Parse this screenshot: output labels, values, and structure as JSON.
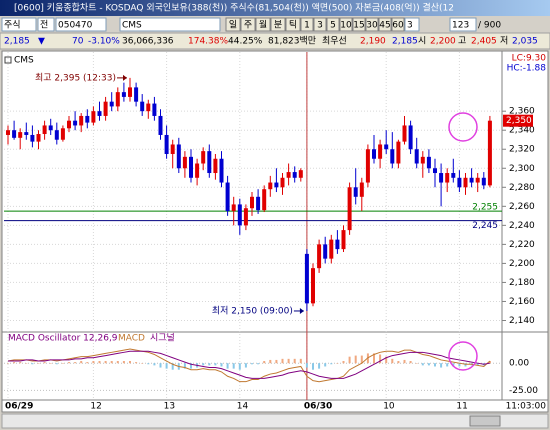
{
  "window": {
    "title": "[0600] 키움종합차트 - KOSDAQ 외국인보유(388(천)) 주식수(81,504(천)) 액면(500) 자본금(408(억)) 결산(12"
  },
  "toolbar": {
    "market": "주식",
    "prefix": "전",
    "code": "050470",
    "indicator": "CMS",
    "periods": [
      "일",
      "주",
      "월",
      "분",
      "틱",
      "1",
      "3",
      "5",
      "10",
      "15",
      "30",
      "45",
      "60"
    ],
    "count": "3",
    "visible": "123",
    "total": "/ 900"
  },
  "quote": {
    "price": "2,185",
    "change_sign": "▼",
    "change": "70",
    "change_pct": "-3.10%",
    "volume": "36,066,336",
    "vol_ratio": "174.38%",
    "rotation": "44.25%",
    "amount": "81,823백만",
    "best_label": "최우선",
    "ask": "2,190",
    "bid": "2,185",
    "open_label": "시",
    "open": "2,200",
    "high_label": "고",
    "high": "2,405",
    "low_label": "저",
    "low": "2,035"
  },
  "chart": {
    "legend": "CMS",
    "lc": "LC:9.30",
    "hc": "HC:-1.88",
    "up_color": "#e00000",
    "down_color": "#0000d0",
    "ylim": [
      2130,
      2418
    ],
    "yticks": [
      {
        "value": 2140,
        "label": "2,140"
      },
      {
        "value": 2160,
        "label": "2,160"
      },
      {
        "value": 2180,
        "label": "2,180"
      },
      {
        "value": 2200,
        "label": "2,200"
      },
      {
        "value": 2220,
        "label": "2,220"
      },
      {
        "value": 2240,
        "label": "2,240"
      },
      {
        "value": 2260,
        "label": "2,260"
      },
      {
        "value": 2280,
        "label": "2,280"
      },
      {
        "value": 2300,
        "label": "2,300"
      },
      {
        "value": 2320,
        "label": "2,320"
      },
      {
        "value": 2340,
        "label": "2,340"
      },
      {
        "value": 2360,
        "label": "2,360"
      }
    ],
    "hlines": [
      {
        "value": 2255,
        "label": "2,255",
        "color": "#008000"
      },
      {
        "value": 2245,
        "label": "2,245",
        "color": "#000080"
      }
    ],
    "last": {
      "value": 2350,
      "label": "2,350"
    },
    "high_note": "최고 2,395 (12:33)",
    "low_note": "최저 2,150 (09:00)",
    "time_label": "11:03:00",
    "categories": [
      "06/29",
      null,
      null,
      null,
      null,
      null,
      null,
      null,
      null,
      null,
      null,
      null,
      null,
      null,
      "12",
      null,
      null,
      null,
      null,
      null,
      null,
      null,
      null,
      null,
      null,
      null,
      "13",
      null,
      null,
      null,
      null,
      null,
      null,
      null,
      null,
      null,
      null,
      null,
      "14",
      null,
      null,
      null,
      null,
      null,
      null,
      null,
      null,
      null,
      null,
      "06/30",
      null,
      null,
      null,
      null,
      null,
      null,
      null,
      null,
      null,
      null,
      null,
      null,
      "10",
      null,
      null,
      null,
      null,
      null,
      null,
      null,
      null,
      null,
      null,
      null,
      "11",
      null,
      null,
      null,
      null,
      null
    ],
    "ohlc": [
      [
        2335,
        2345,
        2325,
        2340
      ],
      [
        2340,
        2350,
        2330,
        2332
      ],
      [
        2332,
        2342,
        2320,
        2338
      ],
      [
        2338,
        2348,
        2330,
        2335
      ],
      [
        2335,
        2345,
        2322,
        2328
      ],
      [
        2328,
        2340,
        2320,
        2336
      ],
      [
        2336,
        2350,
        2330,
        2345
      ],
      [
        2345,
        2352,
        2335,
        2340
      ],
      [
        2340,
        2348,
        2325,
        2330
      ],
      [
        2330,
        2345,
        2328,
        2342
      ],
      [
        2342,
        2355,
        2338,
        2350
      ],
      [
        2350,
        2360,
        2340,
        2345
      ],
      [
        2345,
        2358,
        2338,
        2355
      ],
      [
        2355,
        2362,
        2342,
        2348
      ],
      [
        2348,
        2365,
        2345,
        2360
      ],
      [
        2360,
        2370,
        2350,
        2355
      ],
      [
        2355,
        2375,
        2350,
        2370
      ],
      [
        2370,
        2380,
        2360,
        2365
      ],
      [
        2365,
        2385,
        2360,
        2380
      ],
      [
        2380,
        2390,
        2370,
        2375
      ],
      [
        2375,
        2395,
        2370,
        2385
      ],
      [
        2385,
        2390,
        2365,
        2370
      ],
      [
        2370,
        2378,
        2355,
        2360
      ],
      [
        2360,
        2372,
        2352,
        2368
      ],
      [
        2368,
        2375,
        2350,
        2355
      ],
      [
        2355,
        2362,
        2330,
        2335
      ],
      [
        2335,
        2345,
        2310,
        2315
      ],
      [
        2315,
        2330,
        2300,
        2325
      ],
      [
        2325,
        2332,
        2295,
        2300
      ],
      [
        2300,
        2318,
        2290,
        2312
      ],
      [
        2312,
        2320,
        2285,
        2290
      ],
      [
        2290,
        2310,
        2282,
        2305
      ],
      [
        2305,
        2322,
        2298,
        2318
      ],
      [
        2318,
        2325,
        2290,
        2295
      ],
      [
        2295,
        2315,
        2288,
        2310
      ],
      [
        2310,
        2318,
        2280,
        2285
      ],
      [
        2285,
        2292,
        2250,
        2255
      ],
      [
        2255,
        2270,
        2240,
        2262
      ],
      [
        2262,
        2268,
        2230,
        2240
      ],
      [
        2240,
        2262,
        2235,
        2258
      ],
      [
        2258,
        2275,
        2250,
        2270
      ],
      [
        2270,
        2278,
        2252,
        2256
      ],
      [
        2256,
        2282,
        2254,
        2278
      ],
      [
        2278,
        2292,
        2270,
        2285
      ],
      [
        2285,
        2300,
        2275,
        2280
      ],
      [
        2280,
        2295,
        2272,
        2290
      ],
      [
        2290,
        2305,
        2282,
        2296
      ],
      [
        2296,
        2302,
        2285,
        2290
      ],
      [
        2290,
        2300,
        2286,
        2298
      ],
      [
        2210,
        2215,
        2150,
        2158
      ],
      [
        2158,
        2200,
        2155,
        2195
      ],
      [
        2195,
        2225,
        2190,
        2220
      ],
      [
        2220,
        2228,
        2200,
        2205
      ],
      [
        2205,
        2230,
        2200,
        2225
      ],
      [
        2225,
        2235,
        2210,
        2215
      ],
      [
        2215,
        2240,
        2212,
        2235
      ],
      [
        2235,
        2285,
        2230,
        2280
      ],
      [
        2280,
        2300,
        2262,
        2270
      ],
      [
        2270,
        2290,
        2255,
        2285
      ],
      [
        2285,
        2325,
        2280,
        2320
      ],
      [
        2320,
        2335,
        2305,
        2310
      ],
      [
        2310,
        2330,
        2300,
        2325
      ],
      [
        2325,
        2340,
        2315,
        2320
      ],
      [
        2320,
        2338,
        2300,
        2305
      ],
      [
        2305,
        2330,
        2300,
        2328
      ],
      [
        2328,
        2355,
        2325,
        2345
      ],
      [
        2345,
        2350,
        2315,
        2320
      ],
      [
        2320,
        2332,
        2300,
        2305
      ],
      [
        2305,
        2318,
        2290,
        2312
      ],
      [
        2312,
        2320,
        2295,
        2300
      ],
      [
        2300,
        2310,
        2280,
        2295
      ],
      [
        2295,
        2305,
        2260,
        2285
      ],
      [
        2285,
        2300,
        2275,
        2295
      ],
      [
        2295,
        2310,
        2285,
        2290
      ],
      [
        2290,
        2298,
        2275,
        2280
      ],
      [
        2280,
        2295,
        2272,
        2290
      ],
      [
        2290,
        2300,
        2280,
        2285
      ],
      [
        2285,
        2295,
        2275,
        2290
      ],
      [
        2290,
        2296,
        2278,
        2282
      ],
      [
        2282,
        2355,
        2280,
        2350
      ]
    ]
  },
  "macd": {
    "ylim": [
      -32,
      25
    ],
    "yticks": [
      {
        "value": 0,
        "label": "0.00"
      },
      {
        "value": -25,
        "label": "-25.00"
      }
    ],
    "osc_name": "MACD Oscillator 12,26,9",
    "osc_up_color": "#f0a880",
    "osc_down_color": "#88c8e8",
    "oscillator": [
      0,
      1,
      1,
      0,
      -1,
      0,
      1,
      0,
      -1,
      0,
      1,
      1,
      2,
      1,
      2,
      2,
      2,
      2,
      2,
      2,
      2,
      1,
      0,
      -1,
      -2,
      -4,
      -5,
      -6,
      -6,
      -5,
      -5,
      -4,
      -2,
      -2,
      -2,
      -3,
      -5,
      -5,
      -6,
      -4,
      -1,
      -1,
      2,
      3,
      3,
      4,
      4,
      4,
      4,
      -4,
      -6,
      -5,
      -3,
      -1,
      0,
      2,
      6,
      7,
      7,
      9,
      9,
      8,
      6,
      4,
      2,
      3,
      2,
      0,
      -2,
      -2,
      -3,
      -4,
      -3,
      -3,
      -3,
      -3,
      -2,
      -2,
      -2,
      2
    ],
    "series": [
      {
        "name": "MACD",
        "color": "#c07830",
        "values": [
          2,
          3,
          3,
          3,
          2,
          2,
          3,
          3,
          2,
          3,
          4,
          5,
          6,
          6,
          7,
          8,
          9,
          10,
          11,
          12,
          13,
          12,
          11,
          10,
          8,
          5,
          2,
          -1,
          -3,
          -4,
          -6,
          -6,
          -5,
          -6,
          -6,
          -8,
          -12,
          -14,
          -17,
          -17,
          -15,
          -15,
          -12,
          -10,
          -9,
          -7,
          -5,
          -4,
          -3,
          -12,
          -16,
          -17,
          -16,
          -15,
          -14,
          -12,
          -6,
          -3,
          0,
          5,
          8,
          10,
          11,
          11,
          10,
          12,
          12,
          10,
          8,
          7,
          5,
          3,
          2,
          1,
          0,
          -1,
          -1,
          -2,
          -3,
          2
        ]
      },
      {
        "name": "시그널",
        "color": "#800080",
        "values": [
          2,
          2,
          2,
          3,
          3,
          2,
          2,
          3,
          3,
          3,
          3,
          4,
          4,
          5,
          5,
          6,
          7,
          8,
          9,
          10,
          11,
          11,
          11,
          11,
          10,
          9,
          7,
          5,
          3,
          1,
          -1,
          -2,
          -3,
          -4,
          -4,
          -5,
          -7,
          -9,
          -11,
          -13,
          -14,
          -14,
          -14,
          -13,
          -12,
          -11,
          -9,
          -8,
          -7,
          -8,
          -10,
          -12,
          -13,
          -14,
          -14,
          -14,
          -12,
          -10,
          -7,
          -4,
          -1,
          2,
          5,
          7,
          8,
          9,
          10,
          10,
          10,
          9,
          8,
          7,
          5,
          4,
          3,
          2,
          1,
          0,
          -1,
          0
        ]
      }
    ]
  }
}
